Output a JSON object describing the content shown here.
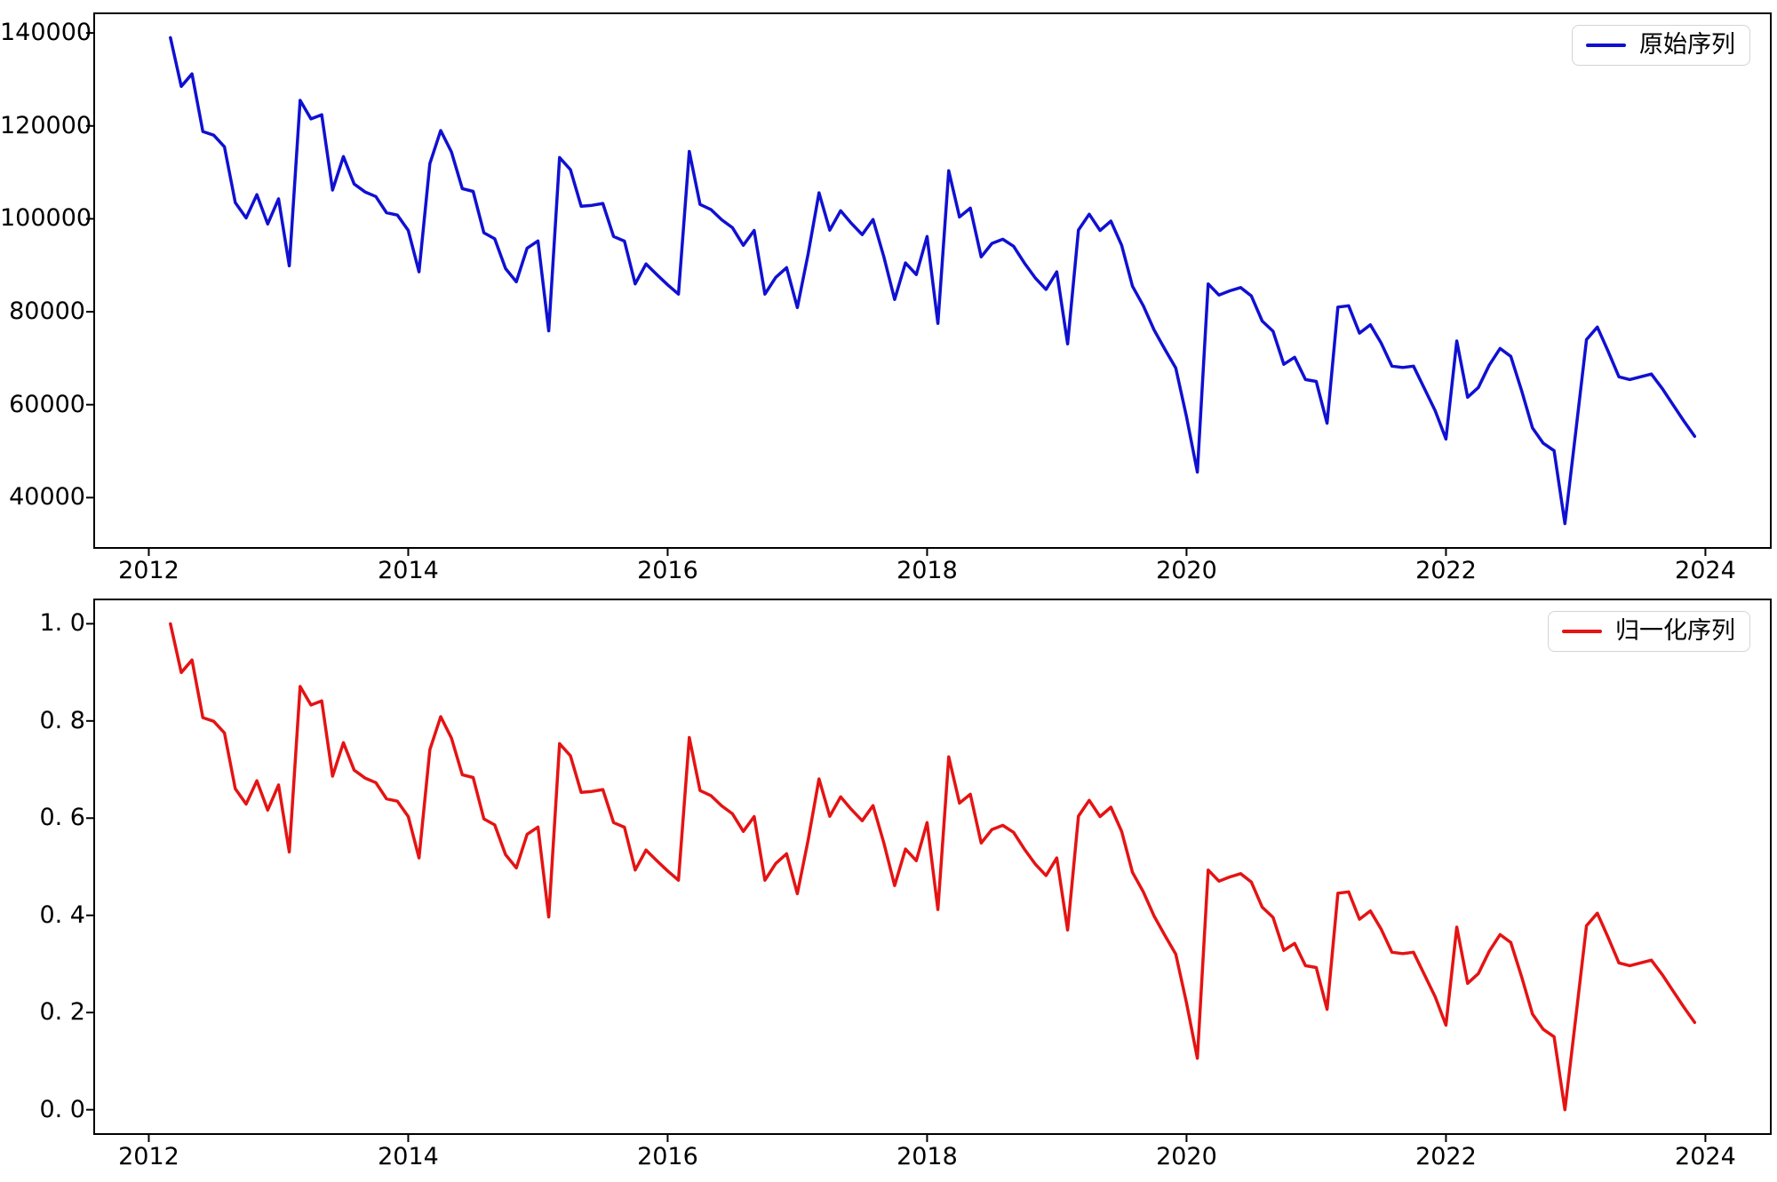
{
  "figure": {
    "background": "#ffffff",
    "spine_color": "#000000",
    "tick_color": "#000000"
  },
  "chart_data": [
    {
      "type": "line",
      "id": "original",
      "legend": {
        "label": "原始序列",
        "position": "upper right"
      },
      "line_color": "#1010d2",
      "frequency": "monthly",
      "x_start": "2012-03",
      "x_end": "2023-12",
      "xlim": [
        2011.579,
        2024.504
      ],
      "ylim": [
        29170,
        144230
      ],
      "xticks": [
        2012,
        2014,
        2016,
        2018,
        2020,
        2022,
        2024
      ],
      "xtick_labels": [
        "2012",
        "2014",
        "2016",
        "2018",
        "2020",
        "2022",
        "2024"
      ],
      "yticks": [
        40000,
        60000,
        80000,
        100000,
        120000,
        140000
      ],
      "ytick_labels": [
        "40000",
        "60000",
        "80000",
        "100000",
        "120000",
        "140000"
      ],
      "grid": false,
      "values": [
        139000,
        128500,
        131200,
        118800,
        118000,
        115500,
        103500,
        100200,
        105200,
        98900,
        104300,
        89900,
        125500,
        121500,
        122400,
        106200,
        113400,
        107500,
        105800,
        104800,
        101300,
        100800,
        97500,
        88600,
        111900,
        119000,
        114400,
        106500,
        105900,
        97000,
        95700,
        89300,
        86450,
        93700,
        95250,
        75900,
        113200,
        110600,
        102700,
        102900,
        103300,
        96200,
        95200,
        86000,
        90300,
        88000,
        85800,
        83800,
        114500,
        103100,
        102000,
        99800,
        98100,
        94300,
        97500,
        83800,
        87400,
        89500,
        80900,
        92500,
        105600,
        97550,
        101750,
        99000,
        96600,
        99850,
        91800,
        82650,
        90500,
        88000,
        96200,
        77500,
        110350,
        100400,
        102300,
        91800,
        94700,
        95600,
        94100,
        90500,
        87300,
        84800,
        88600,
        73100,
        97600,
        101000,
        97500,
        99500,
        94300,
        85500,
        81300,
        76100,
        71900,
        67900,
        57400,
        45500,
        86000,
        83600,
        84500,
        85200,
        83400,
        78000,
        75800,
        68700,
        70200,
        65400,
        65000,
        56000,
        81000,
        81300,
        75400,
        77200,
        73300,
        68300,
        68000,
        68300,
        63500,
        58700,
        52600,
        73700,
        61600,
        63700,
        68500,
        72100,
        70400,
        63000,
        55000,
        51700,
        50100,
        34400,
        54000,
        74000,
        76700,
        71500,
        66000,
        65400,
        66000,
        66600,
        63500,
        60000,
        56500,
        53200
      ]
    },
    {
      "type": "line",
      "id": "normalized",
      "legend": {
        "label": "归一化序列",
        "position": "upper right"
      },
      "line_color": "#e51313",
      "derived": "min-max normalization of the original series to [0, 1]",
      "frequency": "monthly",
      "x_start": "2012-03",
      "x_end": "2023-12",
      "xlim": [
        2011.579,
        2024.504
      ],
      "ylim": [
        -0.05,
        1.05
      ],
      "xticks": [
        2012,
        2014,
        2016,
        2018,
        2020,
        2022,
        2024
      ],
      "xtick_labels": [
        "2012",
        "2014",
        "2016",
        "2018",
        "2020",
        "2022",
        "2024"
      ],
      "yticks": [
        0.0,
        0.2,
        0.4,
        0.6,
        0.8,
        1.0
      ],
      "ytick_labels": [
        "0. 0",
        "0. 2",
        "0. 4",
        "0. 6",
        "0. 8",
        "1. 0"
      ],
      "grid": false,
      "values": null
    }
  ]
}
